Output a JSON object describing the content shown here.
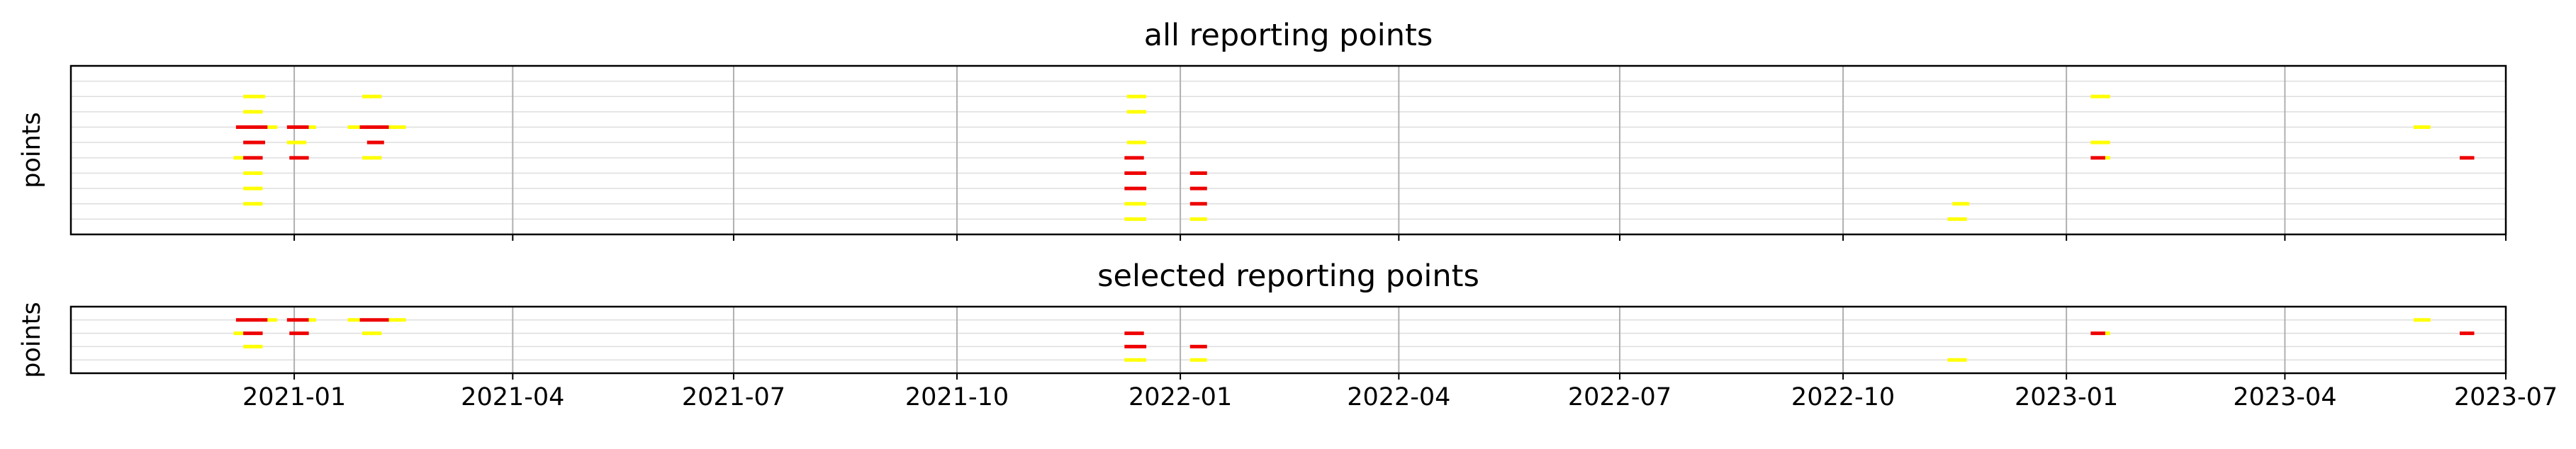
{
  "chart_data": [
    {
      "type": "timeline",
      "title": "all reporting points",
      "ylabel": "points",
      "xlim": [
        "2020-10-01",
        "2023-07-01"
      ],
      "x_ticks": [
        "2021-01",
        "2021-04",
        "2021-07",
        "2021-10",
        "2022-01",
        "2022-04",
        "2022-07",
        "2022-10",
        "2023-01",
        "2023-04",
        "2023-07"
      ],
      "grid": "x and y",
      "rows": 10,
      "segment_colors": {
        "yellow": "#ffff00",
        "red": "#ee0000"
      },
      "segments": [
        {
          "row": 1,
          "start": "2020-12-11",
          "end": "2020-12-20",
          "color": "yellow"
        },
        {
          "row": 1,
          "start": "2021-01-29",
          "end": "2021-02-06",
          "color": "yellow"
        },
        {
          "row": 1,
          "start": "2021-12-10",
          "end": "2021-12-18",
          "color": "yellow"
        },
        {
          "row": 1,
          "start": "2023-01-11",
          "end": "2023-01-19",
          "color": "yellow"
        },
        {
          "row": 2,
          "start": "2020-12-11",
          "end": "2020-12-19",
          "color": "yellow"
        },
        {
          "row": 2,
          "start": "2021-12-10",
          "end": "2021-12-18",
          "color": "yellow"
        },
        {
          "row": 3,
          "start": "2020-12-08",
          "end": "2020-12-21",
          "color": "red"
        },
        {
          "row": 3,
          "start": "2020-12-21",
          "end": "2020-12-25",
          "color": "yellow"
        },
        {
          "row": 3,
          "start": "2020-12-29",
          "end": "2021-01-07",
          "color": "red"
        },
        {
          "row": 3,
          "start": "2021-01-07",
          "end": "2021-01-10",
          "color": "yellow"
        },
        {
          "row": 3,
          "start": "2021-01-23",
          "end": "2021-01-28",
          "color": "yellow"
        },
        {
          "row": 3,
          "start": "2021-01-28",
          "end": "2021-02-09",
          "color": "red"
        },
        {
          "row": 3,
          "start": "2021-02-09",
          "end": "2021-02-16",
          "color": "yellow"
        },
        {
          "row": 3,
          "start": "2023-05-24",
          "end": "2023-05-31",
          "color": "yellow"
        },
        {
          "row": 4,
          "start": "2020-12-11",
          "end": "2020-12-20",
          "color": "red"
        },
        {
          "row": 4,
          "start": "2020-12-29",
          "end": "2021-01-06",
          "color": "yellow"
        },
        {
          "row": 4,
          "start": "2021-01-31",
          "end": "2021-02-07",
          "color": "red"
        },
        {
          "row": 4,
          "start": "2021-12-10",
          "end": "2021-12-18",
          "color": "yellow"
        },
        {
          "row": 4,
          "start": "2023-01-11",
          "end": "2023-01-19",
          "color": "yellow"
        },
        {
          "row": 5,
          "start": "2020-12-07",
          "end": "2020-12-11",
          "color": "yellow"
        },
        {
          "row": 5,
          "start": "2020-12-11",
          "end": "2020-12-19",
          "color": "red"
        },
        {
          "row": 5,
          "start": "2020-12-30",
          "end": "2021-01-07",
          "color": "red"
        },
        {
          "row": 5,
          "start": "2021-01-29",
          "end": "2021-02-06",
          "color": "yellow"
        },
        {
          "row": 5,
          "start": "2021-12-09",
          "end": "2021-12-17",
          "color": "red"
        },
        {
          "row": 5,
          "start": "2023-01-11",
          "end": "2023-01-17",
          "color": "red"
        },
        {
          "row": 5,
          "start": "2023-01-17",
          "end": "2023-01-19",
          "color": "yellow"
        },
        {
          "row": 5,
          "start": "2023-06-12",
          "end": "2023-06-18",
          "color": "red"
        },
        {
          "row": 6,
          "start": "2020-12-11",
          "end": "2020-12-19",
          "color": "yellow"
        },
        {
          "row": 6,
          "start": "2021-12-09",
          "end": "2021-12-18",
          "color": "red"
        },
        {
          "row": 6,
          "start": "2022-01-05",
          "end": "2022-01-12",
          "color": "red"
        },
        {
          "row": 7,
          "start": "2020-12-11",
          "end": "2020-12-19",
          "color": "yellow"
        },
        {
          "row": 7,
          "start": "2021-12-09",
          "end": "2021-12-18",
          "color": "red"
        },
        {
          "row": 7,
          "start": "2022-01-05",
          "end": "2022-01-12",
          "color": "red"
        },
        {
          "row": 8,
          "start": "2020-12-11",
          "end": "2020-12-19",
          "color": "yellow"
        },
        {
          "row": 8,
          "start": "2021-12-09",
          "end": "2021-12-18",
          "color": "yellow"
        },
        {
          "row": 8,
          "start": "2022-01-05",
          "end": "2022-01-12",
          "color": "red"
        },
        {
          "row": 8,
          "start": "2022-11-15",
          "end": "2022-11-22",
          "color": "yellow"
        },
        {
          "row": 9,
          "start": "2021-12-09",
          "end": "2021-12-18",
          "color": "yellow"
        },
        {
          "row": 9,
          "start": "2022-01-05",
          "end": "2022-01-12",
          "color": "yellow"
        },
        {
          "row": 9,
          "start": "2022-11-13",
          "end": "2022-11-21",
          "color": "yellow"
        }
      ]
    },
    {
      "type": "timeline",
      "title": "selected reporting points",
      "ylabel": "points",
      "xlim": [
        "2020-10-01",
        "2023-07-01"
      ],
      "x_ticks": [
        "2021-01",
        "2021-04",
        "2021-07",
        "2021-10",
        "2022-01",
        "2022-04",
        "2022-07",
        "2022-10",
        "2023-01",
        "2023-04",
        "2023-07"
      ],
      "grid": "x and y",
      "rows": 4,
      "segment_colors": {
        "yellow": "#ffff00",
        "red": "#ee0000"
      },
      "segments": [
        {
          "row": 0,
          "start": "2020-12-08",
          "end": "2020-12-21",
          "color": "red"
        },
        {
          "row": 0,
          "start": "2020-12-21",
          "end": "2020-12-25",
          "color": "yellow"
        },
        {
          "row": 0,
          "start": "2020-12-29",
          "end": "2021-01-07",
          "color": "red"
        },
        {
          "row": 0,
          "start": "2021-01-07",
          "end": "2021-01-10",
          "color": "yellow"
        },
        {
          "row": 0,
          "start": "2021-01-23",
          "end": "2021-01-28",
          "color": "yellow"
        },
        {
          "row": 0,
          "start": "2021-01-28",
          "end": "2021-02-09",
          "color": "red"
        },
        {
          "row": 0,
          "start": "2021-02-09",
          "end": "2021-02-16",
          "color": "yellow"
        },
        {
          "row": 0,
          "start": "2023-05-24",
          "end": "2023-05-31",
          "color": "yellow"
        },
        {
          "row": 1,
          "start": "2020-12-07",
          "end": "2020-12-11",
          "color": "yellow"
        },
        {
          "row": 1,
          "start": "2020-12-11",
          "end": "2020-12-19",
          "color": "red"
        },
        {
          "row": 1,
          "start": "2020-12-30",
          "end": "2021-01-07",
          "color": "red"
        },
        {
          "row": 1,
          "start": "2021-01-29",
          "end": "2021-02-06",
          "color": "yellow"
        },
        {
          "row": 1,
          "start": "2023-01-11",
          "end": "2023-01-17",
          "color": "red"
        },
        {
          "row": 1,
          "start": "2023-01-17",
          "end": "2023-01-19",
          "color": "yellow"
        },
        {
          "row": 1,
          "start": "2023-06-12",
          "end": "2023-06-18",
          "color": "red"
        },
        {
          "row": 1,
          "start": "2021-12-09",
          "end": "2021-12-17",
          "color": "red"
        },
        {
          "row": 2,
          "start": "2020-12-11",
          "end": "2020-12-19",
          "color": "yellow"
        },
        {
          "row": 2,
          "start": "2021-12-09",
          "end": "2021-12-18",
          "color": "red"
        },
        {
          "row": 2,
          "start": "2022-01-05",
          "end": "2022-01-12",
          "color": "red"
        },
        {
          "row": 3,
          "start": "2021-12-09",
          "end": "2021-12-18",
          "color": "yellow"
        },
        {
          "row": 3,
          "start": "2022-01-05",
          "end": "2022-01-12",
          "color": "yellow"
        },
        {
          "row": 3,
          "start": "2022-11-13",
          "end": "2022-11-21",
          "color": "yellow"
        }
      ]
    }
  ]
}
